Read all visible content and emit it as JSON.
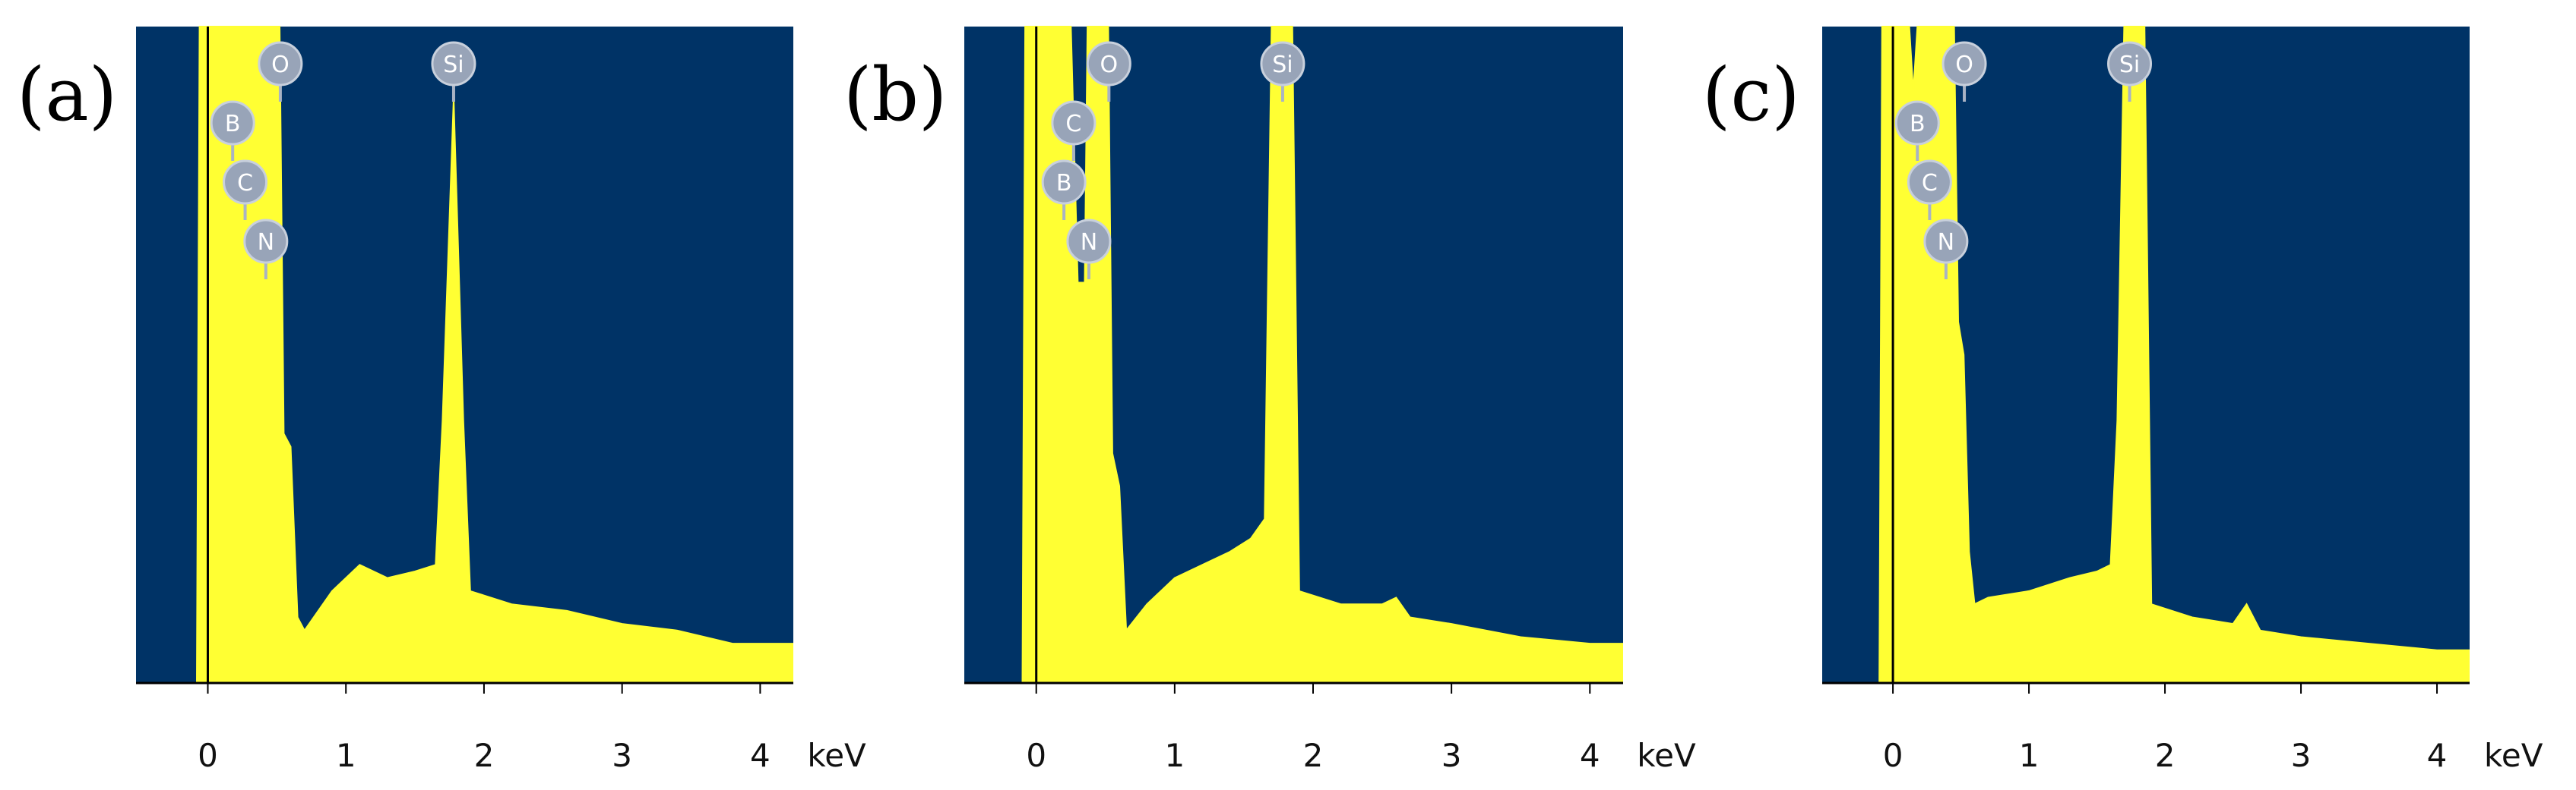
{
  "chart_data": [
    {
      "type": "area",
      "panel_label": "(a)",
      "x_unit": "keV",
      "color": "#ffff33",
      "background": "#003366",
      "xlim": [
        -0.52,
        4.24
      ],
      "xticks": [
        0,
        1,
        2,
        3,
        4
      ],
      "ylim": [
        0,
        100
      ],
      "x": [
        -0.52,
        -0.08,
        -0.06,
        0.52,
        0.55,
        0.6,
        0.65,
        0.7,
        0.9,
        1.1,
        1.3,
        1.5,
        1.65,
        1.7,
        1.78,
        1.85,
        1.9,
        2.2,
        2.6,
        3.0,
        3.4,
        3.8,
        4.24
      ],
      "values": [
        0,
        0,
        100,
        100,
        38,
        36,
        10,
        8,
        14,
        18,
        16,
        17,
        18,
        40,
        89,
        40,
        14,
        12,
        11,
        9,
        8,
        6,
        6
      ],
      "annotations": [
        {
          "label": "O",
          "x": 0.525
        },
        {
          "label": "B",
          "x": 0.18
        },
        {
          "label": "C",
          "x": 0.27
        },
        {
          "label": "N",
          "x": 0.42
        },
        {
          "label": "Si",
          "x": 1.78
        }
      ]
    },
    {
      "type": "area",
      "panel_label": "(b)",
      "x_unit": "keV",
      "color": "#ffff33",
      "background": "#003366",
      "xlim": [
        -0.52,
        4.24
      ],
      "xticks": [
        0,
        1,
        2,
        3,
        4
      ],
      "ylim": [
        0,
        100
      ],
      "x": [
        -0.52,
        -0.1,
        -0.08,
        0.25,
        0.3,
        0.35,
        0.37,
        0.52,
        0.55,
        0.6,
        0.65,
        0.8,
        1.0,
        1.2,
        1.4,
        1.55,
        1.65,
        1.7,
        1.85,
        1.9,
        2.2,
        2.5,
        2.6,
        2.7,
        3.0,
        3.5,
        4.0,
        4.24
      ],
      "values": [
        0,
        0,
        100,
        100,
        61,
        61,
        100,
        100,
        35,
        30,
        8,
        12,
        16,
        18,
        20,
        22,
        25,
        100,
        100,
        14,
        12,
        12,
        13,
        10,
        9,
        7,
        6,
        6
      ],
      "annotations": [
        {
          "label": "O",
          "x": 0.525
        },
        {
          "label": "C",
          "x": 0.27
        },
        {
          "label": "B",
          "x": 0.2
        },
        {
          "label": "N",
          "x": 0.38
        },
        {
          "label": "Si",
          "x": 1.78
        }
      ]
    },
    {
      "type": "area",
      "panel_label": "(c)",
      "x_unit": "keV",
      "color": "#ffff33",
      "background": "#003366",
      "xlim": [
        -0.52,
        4.24
      ],
      "xticks": [
        0,
        1,
        2,
        3,
        4
      ],
      "ylim": [
        0,
        100
      ],
      "x": [
        -0.52,
        -0.1,
        -0.08,
        0.12,
        0.15,
        0.18,
        0.45,
        0.48,
        0.52,
        0.56,
        0.6,
        0.7,
        1.0,
        1.3,
        1.5,
        1.6,
        1.65,
        1.7,
        1.85,
        1.9,
        2.2,
        2.5,
        2.6,
        2.7,
        3.0,
        3.5,
        4.0,
        4.24
      ],
      "values": [
        0,
        0,
        100,
        100,
        90,
        100,
        100,
        55,
        50,
        20,
        12,
        13,
        14,
        16,
        17,
        18,
        40,
        100,
        100,
        12,
        10,
        9,
        12,
        8,
        7,
        6,
        5,
        5
      ],
      "annotations": [
        {
          "label": "O",
          "x": 0.525
        },
        {
          "label": "B",
          "x": 0.18
        },
        {
          "label": "C",
          "x": 0.27
        },
        {
          "label": "N",
          "x": 0.39
        },
        {
          "label": "Si",
          "x": 1.74
        }
      ]
    }
  ]
}
